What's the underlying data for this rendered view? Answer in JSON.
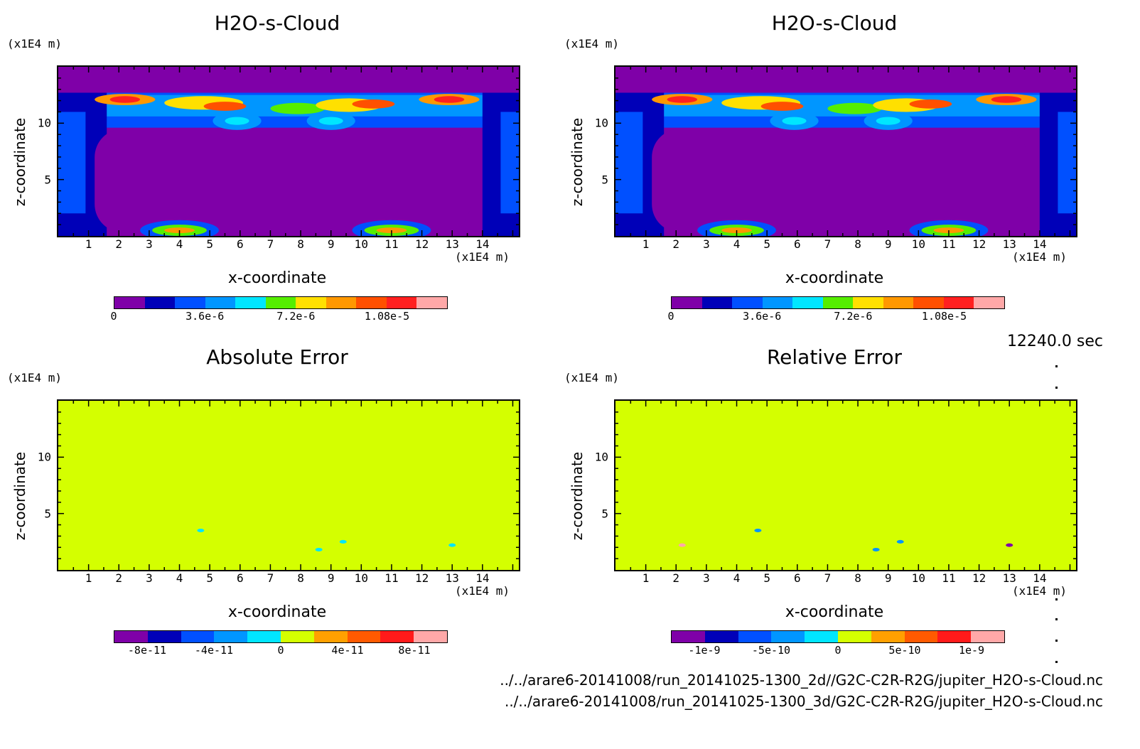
{
  "chart_data": [
    {
      "type": "heatmap",
      "title": "H2O-s-Cloud",
      "xlabel": "x-coordinate",
      "ylabel": "z-coordinate",
      "x_unit": "(x1E4 m)",
      "z_unit": "(x1E4 m)",
      "xlim": [
        0,
        15.2
      ],
      "zlim": [
        0,
        15
      ],
      "x_ticks": [
        "1",
        "2",
        "3",
        "4",
        "5",
        "6",
        "7",
        "8",
        "9",
        "10",
        "11",
        "12",
        "13",
        "14"
      ],
      "z_ticks": [
        "5",
        "10"
      ],
      "colorbar": {
        "levels": [
          0,
          1.2e-06,
          2.4e-06,
          3.6e-06,
          4.8e-06,
          6e-06,
          7.2e-06,
          8.4e-06,
          9.6e-06,
          1.08e-05,
          1.2e-05
        ],
        "labels": [
          "0",
          "3.6e-6",
          "7.2e-6",
          "1.08e-5"
        ],
        "colors": [
          "#7f00a8",
          "#0000b8",
          "#0050ff",
          "#0096ff",
          "#00e6ff",
          "#55ee00",
          "#ffe000",
          "#ff9800",
          "#ff5000",
          "#ff2020",
          "#ffa8a8"
        ]
      },
      "field": "cloud"
    },
    {
      "type": "heatmap",
      "title": "H2O-s-Cloud",
      "xlabel": "x-coordinate",
      "ylabel": "z-coordinate",
      "x_unit": "(x1E4 m)",
      "z_unit": "(x1E4 m)",
      "xlim": [
        0,
        15.2
      ],
      "zlim": [
        0,
        15
      ],
      "x_ticks": [
        "1",
        "2",
        "3",
        "4",
        "5",
        "6",
        "7",
        "8",
        "9",
        "10",
        "11",
        "12",
        "13",
        "14"
      ],
      "z_ticks": [
        "5",
        "10"
      ],
      "colorbar": {
        "levels": [
          0,
          1.2e-06,
          2.4e-06,
          3.6e-06,
          4.8e-06,
          6e-06,
          7.2e-06,
          8.4e-06,
          9.6e-06,
          1.08e-05,
          1.2e-05
        ],
        "labels": [
          "0",
          "3.6e-6",
          "7.2e-6",
          "1.08e-5"
        ],
        "colors": [
          "#7f00a8",
          "#0000b8",
          "#0050ff",
          "#0096ff",
          "#00e6ff",
          "#55ee00",
          "#ffe000",
          "#ff9800",
          "#ff5000",
          "#ff2020",
          "#ffa8a8"
        ]
      },
      "field": "cloud"
    },
    {
      "type": "heatmap",
      "title": "Absolute Error",
      "xlabel": "x-coordinate",
      "ylabel": "z-coordinate",
      "x_unit": "(x1E4 m)",
      "z_unit": "(x1E4 m)",
      "xlim": [
        0,
        15.2
      ],
      "zlim": [
        0,
        15
      ],
      "x_ticks": [
        "1",
        "2",
        "3",
        "4",
        "5",
        "6",
        "7",
        "8",
        "9",
        "10",
        "11",
        "12",
        "13",
        "14"
      ],
      "z_ticks": [
        "5",
        "10"
      ],
      "background_value": 0,
      "spots": [
        {
          "x": 4.7,
          "z": 3.5,
          "value": -2e-11
        },
        {
          "x": 8.6,
          "z": 1.8,
          "value": -2e-11
        },
        {
          "x": 9.4,
          "z": 2.5,
          "value": -2e-11
        },
        {
          "x": 13.0,
          "z": 2.2,
          "value": -2e-11
        }
      ],
      "colorbar": {
        "levels": [
          -1e-10,
          -8e-11,
          -6e-11,
          -4e-11,
          -2e-11,
          0,
          2e-11,
          4e-11,
          6e-11,
          8e-11,
          1e-10
        ],
        "labels": [
          "-8e-11",
          "-4e-11",
          "0",
          "4e-11",
          "8e-11"
        ],
        "colors": [
          "#7f00a8",
          "#0000b8",
          "#0050ff",
          "#0096ff",
          "#00e6ff",
          "#d4ff00",
          "#ffa000",
          "#ff5a00",
          "#ff1a1a",
          "#ffa8a8"
        ]
      },
      "field": "error"
    },
    {
      "type": "heatmap",
      "title": "Relative Error",
      "xlabel": "x-coordinate",
      "ylabel": "z-coordinate",
      "x_unit": "(x1E4 m)",
      "z_unit": "(x1E4 m)",
      "xlim": [
        0,
        15.2
      ],
      "zlim": [
        0,
        15
      ],
      "x_ticks": [
        "1",
        "2",
        "3",
        "4",
        "5",
        "6",
        "7",
        "8",
        "9",
        "10",
        "11",
        "12",
        "13",
        "14"
      ],
      "z_ticks": [
        "5",
        "10"
      ],
      "background_value": 0,
      "spots": [
        {
          "x": 2.2,
          "z": 2.2,
          "value": 1.2e-09
        },
        {
          "x": 4.7,
          "z": 3.5,
          "value": -3e-10
        },
        {
          "x": 8.6,
          "z": 1.8,
          "value": -3e-10
        },
        {
          "x": 9.4,
          "z": 2.5,
          "value": -3e-10
        },
        {
          "x": 13.0,
          "z": 2.2,
          "value": -1.2e-09
        }
      ],
      "colorbar": {
        "levels": [
          -1.5e-09,
          -1e-09,
          -7.5e-10,
          -5e-10,
          -2.5e-10,
          0,
          2.5e-10,
          5e-10,
          7.5e-10,
          1e-09,
          1.5e-09
        ],
        "labels": [
          "-1e-9",
          "-5e-10",
          "0",
          "5e-10",
          "1e-9"
        ],
        "colors": [
          "#7f00a8",
          "#0000b8",
          "#0050ff",
          "#0096ff",
          "#00e6ff",
          "#d4ff00",
          "#ffa000",
          "#ff5a00",
          "#ff1a1a",
          "#ffa8a8"
        ]
      },
      "field": "error"
    }
  ],
  "time_label": "12240.0 sec",
  "file_paths": [
    "../../arare6-20141008/run_20141025-1300_2d//G2C-C2R-R2G/jupiter_H2O-s-Cloud.nc",
    "../../arare6-20141008/run_20141025-1300_3d/G2C-C2R-R2G/jupiter_H2O-s-Cloud.nc"
  ]
}
